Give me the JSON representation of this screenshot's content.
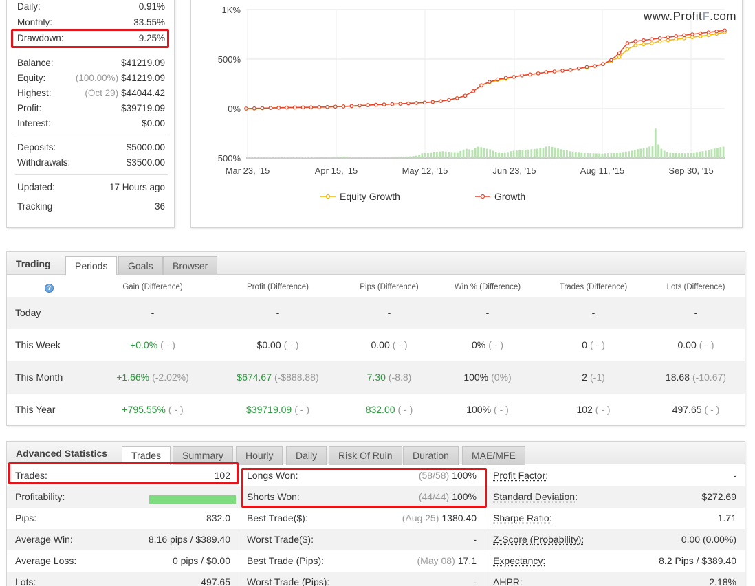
{
  "stats": {
    "daily": {
      "label": "Daily:",
      "value": "0.91%"
    },
    "monthly": {
      "label": "Monthly:",
      "value": "33.55%"
    },
    "drawdown": {
      "label": "Drawdown:",
      "value": "9.25%"
    },
    "balance": {
      "label": "Balance:",
      "value": "$41219.09"
    },
    "equity": {
      "label": "Equity:",
      "note": "(100.00%)",
      "value": "$41219.09"
    },
    "highest": {
      "label": "Highest:",
      "note": "(Oct 29)",
      "value": "$44044.42"
    },
    "profit": {
      "label": "Profit:",
      "value": "$39719.09"
    },
    "interest": {
      "label": "Interest:",
      "value": "$0.00"
    },
    "deposits": {
      "label": "Deposits:",
      "value": "$5000.00"
    },
    "withdrawals": {
      "label": "Withdrawals:",
      "value": "$3500.00"
    },
    "updated": {
      "label": "Updated:",
      "value": "17 Hours ago"
    },
    "tracking": {
      "label": "Tracking",
      "value": "36"
    }
  },
  "watermark": {
    "pre": "www.Profit",
    "f": "F",
    "post": ".com"
  },
  "chart_data": {
    "type": "line",
    "y_ticks": [
      "1K%",
      "500%",
      "0%",
      "-500%"
    ],
    "y_values": [
      1000,
      500,
      0,
      -500
    ],
    "ylim": [
      -500,
      1000
    ],
    "x_ticks": [
      "Mar 23, '15",
      "Apr 15, '15",
      "May 12, '15",
      "Jun 23, '15",
      "Aug 11, '15",
      "Sep 30, '15"
    ],
    "legend_position": "bottom",
    "series": [
      {
        "name": "Equity Growth",
        "color": "#f5b400",
        "values": [
          0,
          0,
          3,
          6,
          9,
          10,
          11,
          12,
          13,
          14,
          16,
          19,
          21,
          25,
          30,
          34,
          38,
          41,
          44,
          48,
          52,
          56,
          60,
          66,
          75,
          88,
          105,
          130,
          175,
          235,
          265,
          285,
          300,
          320,
          335,
          345,
          355,
          368,
          375,
          382,
          390,
          405,
          415,
          430,
          450,
          480,
          520,
          600,
          640,
          650,
          660,
          680,
          690,
          700,
          710,
          720,
          730,
          740,
          755,
          770
        ]
      },
      {
        "name": "Growth",
        "color": "#e8432c",
        "values": [
          0,
          2,
          4,
          6,
          8,
          10,
          11,
          12,
          13,
          14,
          16,
          19,
          21,
          25,
          30,
          34,
          38,
          41,
          44,
          48,
          52,
          56,
          60,
          66,
          75,
          88,
          105,
          130,
          175,
          235,
          270,
          295,
          310,
          320,
          335,
          345,
          355,
          368,
          375,
          382,
          390,
          405,
          420,
          430,
          450,
          490,
          560,
          660,
          680,
          690,
          700,
          710,
          720,
          730,
          740,
          750,
          760,
          770,
          780,
          790
        ]
      }
    ],
    "bars": [
      2,
      2,
      2,
      2,
      2,
      2,
      2,
      2,
      2,
      2,
      2,
      2,
      2,
      2,
      2,
      2,
      2,
      2,
      2,
      2,
      3,
      4,
      5,
      6,
      6,
      8,
      6,
      6,
      6,
      8,
      6,
      10,
      12,
      14,
      10,
      6,
      6,
      6,
      6,
      6,
      6,
      6,
      6,
      6,
      6,
      6,
      6,
      6,
      6,
      8,
      8,
      8,
      10,
      12,
      14,
      16,
      18,
      22,
      28,
      45,
      50,
      52,
      55,
      60,
      60,
      62,
      65,
      62,
      60,
      58,
      56,
      55,
      68,
      82,
      90,
      84,
      80,
      100,
      110,
      105,
      95,
      90,
      85,
      70,
      60,
      55,
      50,
      55,
      58,
      65,
      70,
      72,
      75,
      78,
      80,
      82,
      85,
      88,
      90,
      95,
      100,
      110,
      115,
      108,
      102,
      92,
      85,
      80,
      78,
      65,
      62,
      60,
      58,
      55,
      50,
      48,
      46,
      45,
      44,
      43,
      42,
      45,
      46,
      48,
      50,
      52,
      55,
      58,
      62,
      65,
      70,
      78,
      85,
      90,
      95,
      102,
      110,
      120,
      285,
      130,
      90,
      70,
      60,
      55,
      52,
      50,
      48,
      46,
      45,
      48,
      52,
      55,
      58,
      62,
      65,
      70,
      78,
      85,
      92,
      100,
      105,
      110
    ]
  },
  "periods": {
    "title": "Trading",
    "tabs": [
      "Periods",
      "Goals",
      "Browser"
    ],
    "columns": [
      "Gain (Difference)",
      "Profit (Difference)",
      "Pips (Difference)",
      "Win % (Difference)",
      "Trades (Difference)",
      "Lots (Difference)"
    ],
    "rows": [
      {
        "label": "Today",
        "cells": [
          {
            "v": "-",
            "d": ""
          },
          {
            "v": "-",
            "d": ""
          },
          {
            "v": "-",
            "d": ""
          },
          {
            "v": "-",
            "d": ""
          },
          {
            "v": "-",
            "d": ""
          },
          {
            "v": "-",
            "d": ""
          }
        ]
      },
      {
        "label": "This Week",
        "cells": [
          {
            "v": "+0.0%",
            "d": "( - )",
            "g": true
          },
          {
            "v": "$0.00",
            "d": "( - )"
          },
          {
            "v": "0.00",
            "d": "( - )"
          },
          {
            "v": "0%",
            "d": "( - )"
          },
          {
            "v": "0",
            "d": "( - )"
          },
          {
            "v": "0.00",
            "d": "( - )"
          }
        ]
      },
      {
        "label": "This Month",
        "cells": [
          {
            "v": "+1.66%",
            "d": "(-2.02%)",
            "g": true
          },
          {
            "v": "$674.67",
            "d": "(-$888.88)",
            "g": true
          },
          {
            "v": "7.30",
            "d": "(-8.8)",
            "g": true
          },
          {
            "v": "100%",
            "d": "(0%)"
          },
          {
            "v": "2",
            "d": "(-1)"
          },
          {
            "v": "18.68",
            "d": "(-10.67)"
          }
        ]
      },
      {
        "label": "This Year",
        "cells": [
          {
            "v": "+795.55%",
            "d": "( - )",
            "g": true
          },
          {
            "v": "$39719.09",
            "d": "( - )",
            "g": true
          },
          {
            "v": "832.00",
            "d": "( - )",
            "g": true
          },
          {
            "v": "100%",
            "d": "( - )"
          },
          {
            "v": "102",
            "d": "( - )"
          },
          {
            "v": "497.65",
            "d": "( - )"
          }
        ]
      }
    ]
  },
  "advanced": {
    "title": "Advanced Statistics",
    "tabs": [
      "Trades",
      "Summary",
      "Hourly",
      "Daily",
      "Risk Of Ruin",
      "Duration",
      "MAE/MFE"
    ],
    "col1": [
      {
        "label": "Trades:",
        "value": "102"
      },
      {
        "label": "Profitability:",
        "value": ""
      },
      {
        "label": "Pips:",
        "value": "832.0"
      },
      {
        "label": "Average Win:",
        "value": "8.16 pips / $389.40"
      },
      {
        "label": "Average Loss:",
        "value": "0 pips / $0.00"
      },
      {
        "label": "Lots:",
        "value": "497.65"
      }
    ],
    "profitability_pct": 100,
    "col2": [
      {
        "label": "Longs Won:",
        "note": "(58/58)",
        "value": "100%"
      },
      {
        "label": "Shorts Won:",
        "note": "(44/44)",
        "value": "100%"
      },
      {
        "label": "Best Trade($):",
        "note": "(Aug 25)",
        "value": "1380.40"
      },
      {
        "label": "Worst Trade($):",
        "note": "",
        "value": "-"
      },
      {
        "label": "Best Trade (Pips):",
        "note": "(May 08)",
        "value": "17.1"
      },
      {
        "label": "Worst Trade (Pips):",
        "note": "",
        "value": "-"
      }
    ],
    "col3": [
      {
        "label": "Profit Factor:",
        "value": "-"
      },
      {
        "label": "Standard Deviation:",
        "value": "$272.69"
      },
      {
        "label": "Sharpe Ratio:",
        "value": "1.71"
      },
      {
        "label": "Z-Score (Probability):",
        "value": "0.00 (0.00%)"
      },
      {
        "label": "Expectancy:",
        "value": "8.2 Pips / $389.40"
      },
      {
        "label": "AHPR:",
        "value": "2.18%"
      }
    ]
  },
  "colors": {
    "highlight": "#e3141c",
    "positive": "#2a9a3c",
    "bar": "#b8e3b0"
  }
}
